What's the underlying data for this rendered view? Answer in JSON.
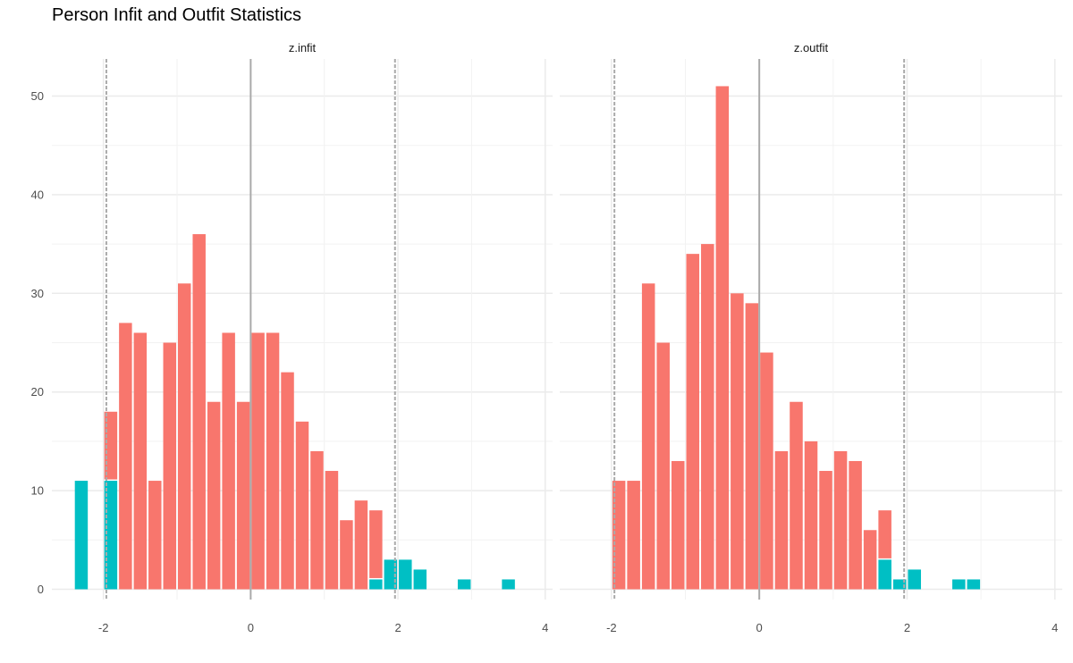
{
  "title": "Person Infit and Outfit Statistics",
  "chart_data": {
    "type": "bar",
    "title": "Person Infit and Outfit Statistics",
    "y_ticks": [
      0,
      10,
      20,
      30,
      40,
      50
    ],
    "ylim": [
      0,
      53
    ],
    "x_ticks": [
      -2,
      0,
      2,
      4
    ],
    "xlim": [
      -2.7,
      4.1
    ],
    "grid": true,
    "legend": "none",
    "colors": {
      "within": "#F8766D",
      "outside": "#00BFC4",
      "ref_line": "#aaaaaa",
      "grid": "#ebebeb"
    },
    "reference_lines": {
      "solid": [
        0
      ],
      "dashed": [
        -1.96,
        1.96
      ]
    },
    "bin_width": 0.2,
    "panels": [
      {
        "strip_label": "z.infit",
        "bins": [
          {
            "x": -2.3,
            "within": 0,
            "outside": 11
          },
          {
            "x": -1.9,
            "within": 7,
            "outside": 11
          },
          {
            "x": -1.7,
            "within": 27,
            "outside": 0
          },
          {
            "x": -1.5,
            "within": 26,
            "outside": 0
          },
          {
            "x": -1.3,
            "within": 11,
            "outside": 0
          },
          {
            "x": -1.1,
            "within": 25,
            "outside": 0
          },
          {
            "x": -0.9,
            "within": 31,
            "outside": 0
          },
          {
            "x": -0.7,
            "within": 36,
            "outside": 0
          },
          {
            "x": -0.5,
            "within": 19,
            "outside": 0
          },
          {
            "x": -0.3,
            "within": 26,
            "outside": 0
          },
          {
            "x": -0.1,
            "within": 19,
            "outside": 0
          },
          {
            "x": 0.1,
            "within": 26,
            "outside": 0
          },
          {
            "x": 0.3,
            "within": 26,
            "outside": 0
          },
          {
            "x": 0.5,
            "within": 22,
            "outside": 0
          },
          {
            "x": 0.7,
            "within": 17,
            "outside": 0
          },
          {
            "x": 0.9,
            "within": 14,
            "outside": 0
          },
          {
            "x": 1.1,
            "within": 12,
            "outside": 0
          },
          {
            "x": 1.3,
            "within": 7,
            "outside": 0
          },
          {
            "x": 1.5,
            "within": 9,
            "outside": 0
          },
          {
            "x": 1.7,
            "within": 7,
            "outside": 1
          },
          {
            "x": 1.9,
            "within": 0,
            "outside": 3
          },
          {
            "x": 2.1,
            "within": 0,
            "outside": 3
          },
          {
            "x": 2.3,
            "within": 0,
            "outside": 2
          },
          {
            "x": 2.9,
            "within": 0,
            "outside": 1
          },
          {
            "x": 3.5,
            "within": 0,
            "outside": 1
          }
        ]
      },
      {
        "strip_label": "z.outfit",
        "bins": [
          {
            "x": -1.9,
            "within": 11,
            "outside": 0
          },
          {
            "x": -1.7,
            "within": 11,
            "outside": 0
          },
          {
            "x": -1.5,
            "within": 31,
            "outside": 0
          },
          {
            "x": -1.3,
            "within": 25,
            "outside": 0
          },
          {
            "x": -1.1,
            "within": 13,
            "outside": 0
          },
          {
            "x": -0.9,
            "within": 34,
            "outside": 0
          },
          {
            "x": -0.7,
            "within": 35,
            "outside": 0
          },
          {
            "x": -0.5,
            "within": 51,
            "outside": 0
          },
          {
            "x": -0.3,
            "within": 30,
            "outside": 0
          },
          {
            "x": -0.1,
            "within": 29,
            "outside": 0
          },
          {
            "x": 0.1,
            "within": 24,
            "outside": 0
          },
          {
            "x": 0.3,
            "within": 14,
            "outside": 0
          },
          {
            "x": 0.5,
            "within": 19,
            "outside": 0
          },
          {
            "x": 0.7,
            "within": 15,
            "outside": 0
          },
          {
            "x": 0.9,
            "within": 12,
            "outside": 0
          },
          {
            "x": 1.1,
            "within": 14,
            "outside": 0
          },
          {
            "x": 1.3,
            "within": 13,
            "outside": 0
          },
          {
            "x": 1.5,
            "within": 6,
            "outside": 0
          },
          {
            "x": 1.7,
            "within": 5,
            "outside": 3
          },
          {
            "x": 1.9,
            "within": 0,
            "outside": 1
          },
          {
            "x": 2.1,
            "within": 0,
            "outside": 2
          },
          {
            "x": 2.7,
            "within": 0,
            "outside": 1
          },
          {
            "x": 2.9,
            "within": 0,
            "outside": 1
          }
        ]
      }
    ]
  }
}
